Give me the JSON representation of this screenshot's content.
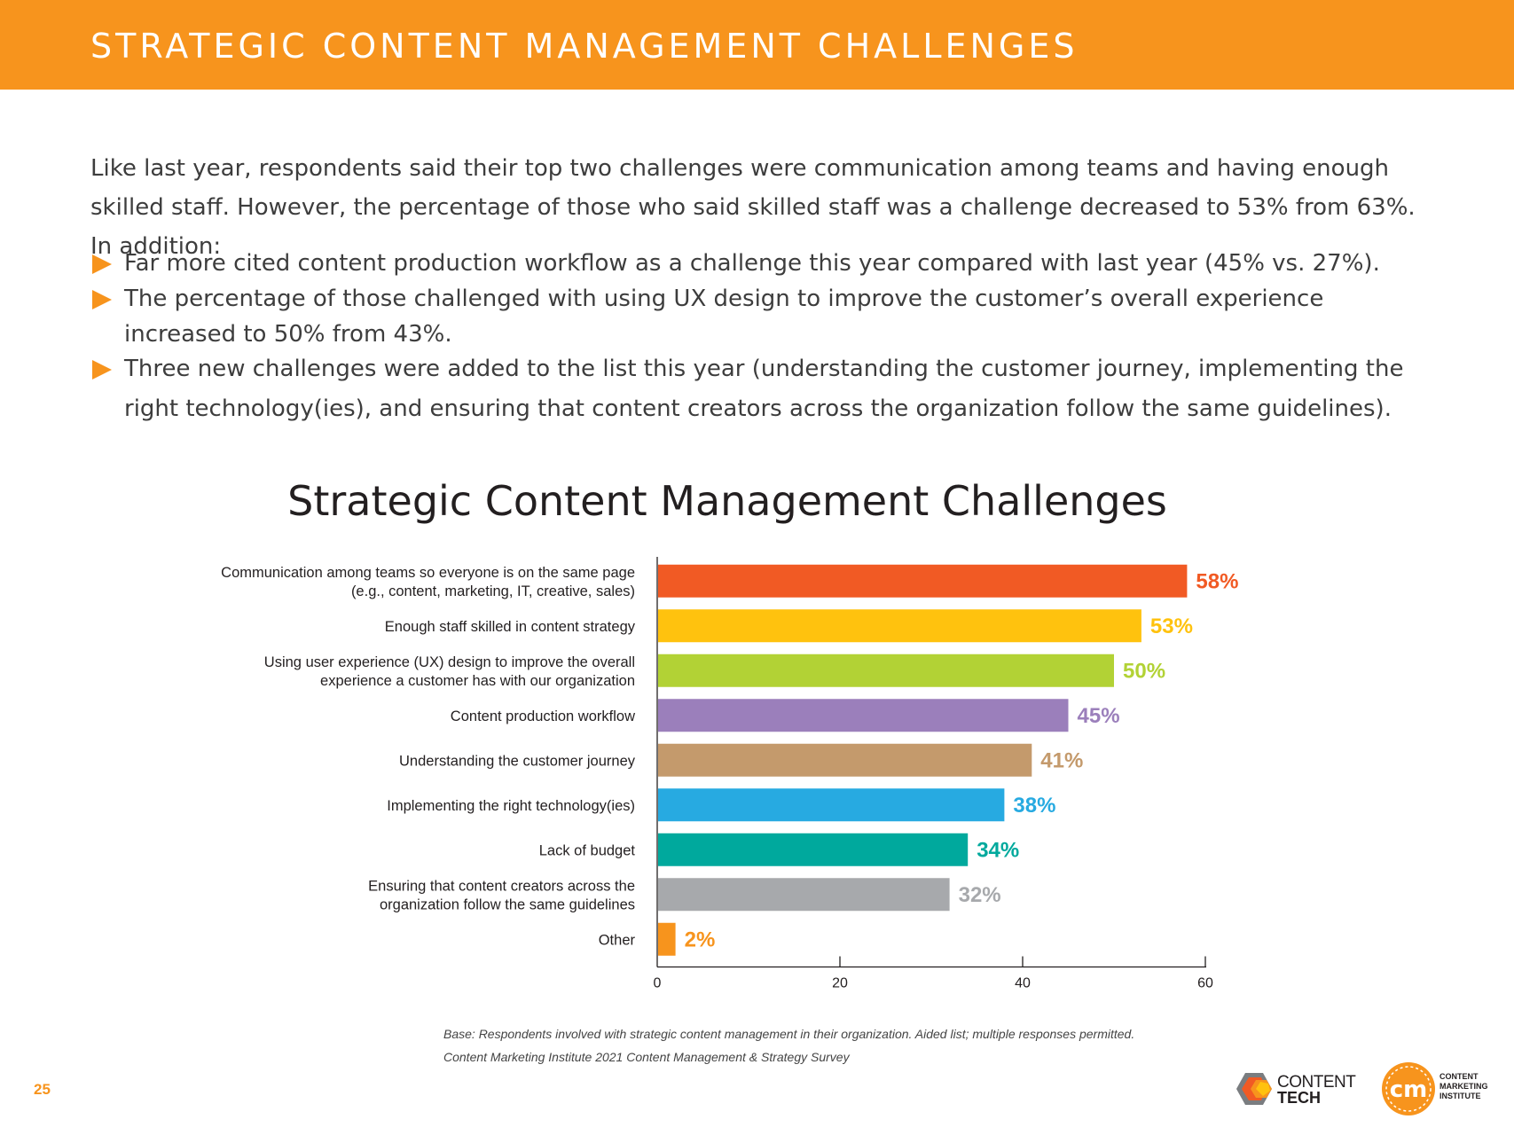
{
  "header": {
    "title": "STRATEGIC CONTENT MANAGEMENT CHALLENGES"
  },
  "intro": "Like last year, respondents said their top two challenges were communication among teams and having enough skilled staff. However, the percentage of those who said skilled staff was a challenge decreased to 53% from 63%. In addition:",
  "bullets": [
    "Far more cited content production workflow as a challenge this year compared with last year (45% vs. 27%).",
    "The percentage of those challenged with using UX design to improve the customer’s overall experience increased to 50% from 43%.",
    "Three new challenges were added to the list this year (understanding the customer journey, implementing the right technology(ies), and ensuring that content creators across the organization follow the same guidelines)."
  ],
  "bullet_icon": "triangle-arrow-right-icon",
  "accent_color": "#f7941d",
  "chart_data": {
    "type": "bar",
    "orientation": "horizontal",
    "title": "Strategic Content Management Challenges",
    "categories": [
      [
        "Communication among teams so everyone is on the same page",
        "(e.g., content, marketing, IT, creative, sales)"
      ],
      [
        "Enough staff skilled in content strategy"
      ],
      [
        "Using user experience (UX) design to improve the overall",
        "experience a customer has with our organization"
      ],
      [
        "Content production workflow"
      ],
      [
        "Understanding the customer journey"
      ],
      [
        "Implementing the right technology(ies)"
      ],
      [
        "Lack of budget"
      ],
      [
        "Ensuring that content creators across the",
        "organization follow the same guidelines"
      ],
      [
        "Other"
      ]
    ],
    "values": [
      58,
      53,
      50,
      45,
      41,
      38,
      34,
      32,
      2
    ],
    "value_labels": [
      "58%",
      "53%",
      "50%",
      "45%",
      "41%",
      "38%",
      "34%",
      "32%",
      "2%"
    ],
    "colors": [
      "#f15a24",
      "#ffc20e",
      "#b2d235",
      "#9b7fbb",
      "#c49a6c",
      "#27aae1",
      "#00a99d",
      "#a7a9ac",
      "#f7941d"
    ],
    "xlim": [
      0,
      60
    ],
    "xticks": [
      0,
      20,
      40,
      60
    ],
    "xlabel": "",
    "ylabel": "",
    "grid": false,
    "legend": "none"
  },
  "source": [
    "Base: Respondents involved with strategic content management in their organization. Aided list; multiple responses permitted.",
    "Content Marketing Institute 2021 Content Management & Strategy Survey"
  ],
  "page_number": "25",
  "logos": {
    "content_tech": {
      "icon": "hexagon-logo-icon",
      "line1": "CONTENT",
      "line2": "TECH"
    },
    "cmi": {
      "icon": "cm-circle-logo-icon",
      "lines": [
        "CONTENT",
        "MARKETING",
        "INSTITUTE"
      ]
    }
  }
}
